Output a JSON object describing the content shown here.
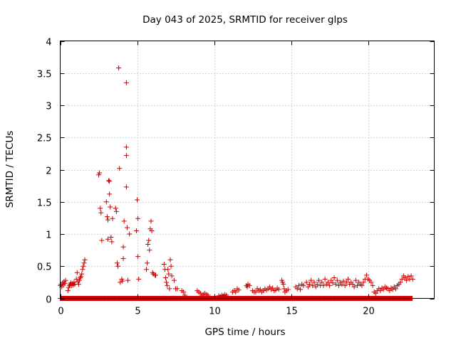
{
  "chart_data": {
    "type": "scatter",
    "title": "Day 043 of 2025, SRMTID for receiver glps",
    "xlabel": "GPS time / hours",
    "ylabel": "SRMTID / TECUs",
    "xlim": [
      0,
      24.3
    ],
    "ylim": [
      0,
      4
    ],
    "xticks": [
      0,
      5,
      10,
      15,
      20
    ],
    "xtick_labels": [
      "0",
      "5",
      "10",
      "15",
      "20"
    ],
    "yticks": [
      0,
      0.5,
      1,
      1.5,
      2,
      2.5,
      3,
      3.5,
      4
    ],
    "ytick_labels": [
      "0",
      "0.5",
      "1",
      "1.5",
      "2",
      "2.5",
      "3",
      "3.5",
      "4"
    ],
    "grid": true,
    "legend": "none",
    "marker": "plus",
    "marker_color": "#cc0000",
    "series": [
      {
        "name": "SRMTID",
        "points": [
          [
            0.0,
            0.2
          ],
          [
            0.05,
            0.22
          ],
          [
            0.1,
            0.18
          ],
          [
            0.15,
            0.24
          ],
          [
            0.2,
            0.21
          ],
          [
            0.25,
            0.26
          ],
          [
            0.3,
            0.23
          ],
          [
            0.35,
            0.28
          ],
          [
            0.5,
            0.12
          ],
          [
            0.55,
            0.17
          ],
          [
            0.6,
            0.2
          ],
          [
            0.65,
            0.22
          ],
          [
            0.7,
            0.24
          ],
          [
            0.75,
            0.2
          ],
          [
            0.8,
            0.23
          ],
          [
            0.85,
            0.21
          ],
          [
            0.9,
            0.25
          ],
          [
            0.95,
            0.22
          ],
          [
            1.05,
            0.3
          ],
          [
            1.1,
            0.4
          ],
          [
            1.15,
            0.26
          ],
          [
            1.2,
            0.22
          ],
          [
            1.25,
            0.28
          ],
          [
            1.3,
            0.32
          ],
          [
            1.35,
            0.34
          ],
          [
            1.4,
            0.38
          ],
          [
            1.45,
            0.45
          ],
          [
            1.5,
            0.5
          ],
          [
            1.55,
            0.55
          ],
          [
            1.6,
            0.6
          ],
          [
            2.5,
            1.92
          ],
          [
            2.55,
            1.95
          ],
          [
            2.6,
            1.4
          ],
          [
            2.65,
            1.33
          ],
          [
            2.7,
            0.9
          ],
          [
            3.0,
            1.5
          ],
          [
            3.05,
            1.27
          ],
          [
            3.1,
            1.22
          ],
          [
            3.1,
            0.92
          ],
          [
            3.15,
            1.83
          ],
          [
            3.2,
            1.82
          ],
          [
            3.2,
            1.62
          ],
          [
            3.25,
            1.42
          ],
          [
            3.3,
            0.95
          ],
          [
            3.35,
            0.88
          ],
          [
            3.4,
            1.24
          ],
          [
            3.6,
            1.4
          ],
          [
            3.65,
            1.35
          ],
          [
            3.7,
            0.55
          ],
          [
            3.75,
            0.5
          ],
          [
            3.8,
            3.58
          ],
          [
            3.85,
            2.02
          ],
          [
            3.9,
            0.25
          ],
          [
            4.0,
            0.3
          ],
          [
            4.05,
            0.27
          ],
          [
            4.1,
            0.8
          ],
          [
            4.1,
            0.62
          ],
          [
            4.15,
            1.2
          ],
          [
            4.3,
            3.35
          ],
          [
            4.3,
            2.35
          ],
          [
            4.3,
            2.22
          ],
          [
            4.3,
            1.73
          ],
          [
            4.35,
            1.1
          ],
          [
            4.4,
            0.28
          ],
          [
            4.5,
            1.0
          ],
          [
            4.95,
            1.05
          ],
          [
            5.0,
            1.53
          ],
          [
            5.05,
            1.24
          ],
          [
            5.05,
            0.65
          ],
          [
            5.1,
            0.3
          ],
          [
            5.6,
            0.45
          ],
          [
            5.65,
            0.55
          ],
          [
            5.7,
            0.84
          ],
          [
            5.75,
            0.9
          ],
          [
            5.8,
            0.75
          ],
          [
            5.85,
            1.08
          ],
          [
            5.9,
            1.2
          ],
          [
            5.95,
            1.05
          ],
          [
            6.0,
            0.4
          ],
          [
            6.05,
            0.38
          ],
          [
            6.15,
            0.36
          ],
          [
            6.2,
            0.36
          ],
          [
            6.75,
            0.53
          ],
          [
            6.8,
            0.45
          ],
          [
            6.85,
            0.32
          ],
          [
            6.9,
            0.25
          ],
          [
            6.95,
            0.2
          ],
          [
            7.0,
            0.45
          ],
          [
            7.05,
            0.38
          ],
          [
            7.1,
            0.15
          ],
          [
            7.15,
            0.6
          ],
          [
            7.2,
            0.5
          ],
          [
            7.25,
            0.35
          ],
          [
            7.4,
            0.28
          ],
          [
            7.5,
            0.15
          ],
          [
            7.6,
            0.15
          ],
          [
            7.9,
            0.12
          ],
          [
            8.0,
            0.1
          ],
          [
            8.1,
            0.05
          ],
          [
            8.9,
            0.12
          ],
          [
            9.0,
            0.1
          ],
          [
            9.1,
            0.08
          ],
          [
            9.2,
            0.05
          ],
          [
            9.3,
            0.06
          ],
          [
            9.4,
            0.08
          ],
          [
            9.5,
            0.06
          ],
          [
            9.6,
            0.05
          ],
          [
            10.3,
            0.04
          ],
          [
            10.4,
            0.03
          ],
          [
            10.5,
            0.05
          ],
          [
            10.6,
            0.04
          ],
          [
            10.7,
            0.06
          ],
          [
            10.8,
            0.05
          ],
          [
            11.2,
            0.1
          ],
          [
            11.3,
            0.12
          ],
          [
            11.4,
            0.1
          ],
          [
            11.5,
            0.15
          ],
          [
            11.6,
            0.13
          ],
          [
            12.1,
            0.2
          ],
          [
            12.15,
            0.18
          ],
          [
            12.2,
            0.22
          ],
          [
            12.3,
            0.2
          ],
          [
            12.5,
            0.12
          ],
          [
            12.6,
            0.1
          ],
          [
            12.7,
            0.1
          ],
          [
            12.8,
            0.15
          ],
          [
            12.9,
            0.12
          ],
          [
            13.0,
            0.14
          ],
          [
            13.1,
            0.1
          ],
          [
            13.2,
            0.12
          ],
          [
            13.3,
            0.15
          ],
          [
            13.4,
            0.13
          ],
          [
            13.5,
            0.15
          ],
          [
            13.6,
            0.18
          ],
          [
            13.7,
            0.14
          ],
          [
            13.8,
            0.16
          ],
          [
            13.9,
            0.12
          ],
          [
            14.0,
            0.13
          ],
          [
            14.1,
            0.16
          ],
          [
            14.2,
            0.14
          ],
          [
            14.4,
            0.28
          ],
          [
            14.45,
            0.25
          ],
          [
            14.5,
            0.22
          ],
          [
            14.55,
            0.15
          ],
          [
            14.6,
            0.1
          ],
          [
            14.7,
            0.12
          ],
          [
            14.8,
            0.14
          ],
          [
            15.3,
            0.18
          ],
          [
            15.4,
            0.15
          ],
          [
            15.5,
            0.2
          ],
          [
            15.6,
            0.14
          ],
          [
            15.7,
            0.22
          ],
          [
            15.8,
            0.2
          ],
          [
            16.0,
            0.25
          ],
          [
            16.1,
            0.18
          ],
          [
            16.2,
            0.22
          ],
          [
            16.3,
            0.28
          ],
          [
            16.4,
            0.2
          ],
          [
            16.5,
            0.25
          ],
          [
            16.6,
            0.18
          ],
          [
            16.7,
            0.22
          ],
          [
            16.8,
            0.28
          ],
          [
            16.9,
            0.2
          ],
          [
            17.0,
            0.25
          ],
          [
            17.1,
            0.2
          ],
          [
            17.2,
            0.3
          ],
          [
            17.3,
            0.22
          ],
          [
            17.4,
            0.25
          ],
          [
            17.5,
            0.2
          ],
          [
            17.6,
            0.28
          ],
          [
            17.7,
            0.24
          ],
          [
            17.8,
            0.32
          ],
          [
            17.9,
            0.22
          ],
          [
            18.0,
            0.28
          ],
          [
            18.1,
            0.2
          ],
          [
            18.2,
            0.25
          ],
          [
            18.3,
            0.22
          ],
          [
            18.4,
            0.27
          ],
          [
            18.5,
            0.2
          ],
          [
            18.6,
            0.25
          ],
          [
            18.7,
            0.3
          ],
          [
            18.8,
            0.22
          ],
          [
            18.9,
            0.25
          ],
          [
            19.0,
            0.22
          ],
          [
            19.1,
            0.18
          ],
          [
            19.2,
            0.28
          ],
          [
            19.3,
            0.2
          ],
          [
            19.4,
            0.25
          ],
          [
            19.5,
            0.22
          ],
          [
            19.6,
            0.2
          ],
          [
            19.7,
            0.25
          ],
          [
            19.8,
            0.3
          ],
          [
            19.9,
            0.36
          ],
          [
            20.0,
            0.3
          ],
          [
            20.1,
            0.28
          ],
          [
            20.2,
            0.25
          ],
          [
            20.3,
            0.2
          ],
          [
            20.4,
            0.1
          ],
          [
            20.5,
            0.08
          ],
          [
            20.6,
            0.12
          ],
          [
            20.7,
            0.15
          ],
          [
            20.8,
            0.12
          ],
          [
            20.9,
            0.16
          ],
          [
            21.0,
            0.14
          ],
          [
            21.1,
            0.18
          ],
          [
            21.2,
            0.16
          ],
          [
            21.3,
            0.15
          ],
          [
            21.4,
            0.12
          ],
          [
            21.5,
            0.16
          ],
          [
            21.6,
            0.14
          ],
          [
            21.7,
            0.18
          ],
          [
            21.8,
            0.15
          ],
          [
            21.9,
            0.2
          ],
          [
            22.0,
            0.22
          ],
          [
            22.1,
            0.25
          ],
          [
            22.2,
            0.3
          ],
          [
            22.3,
            0.35
          ],
          [
            22.4,
            0.32
          ],
          [
            22.5,
            0.28
          ],
          [
            22.6,
            0.34
          ],
          [
            22.7,
            0.3
          ],
          [
            22.8,
            0.35
          ],
          [
            22.9,
            0.3
          ]
        ],
        "zero_band_x": [
          0.0,
          22.9
        ]
      }
    ]
  }
}
